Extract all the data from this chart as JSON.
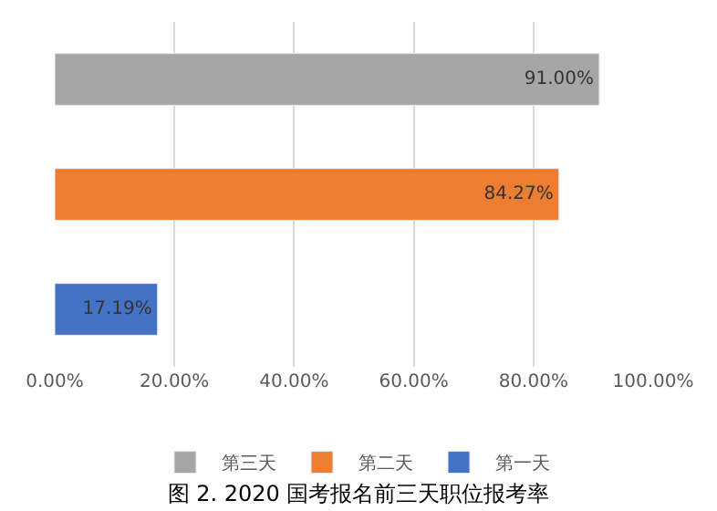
{
  "chart_data": {
    "type": "bar",
    "orientation": "horizontal",
    "title": "图 2. 2020 国考报名前三天职位报考率",
    "categories": [
      null,
      null,
      null
    ],
    "series": [
      {
        "name": "第三天",
        "color": "#a6a6a6",
        "values": [
          91.0,
          null,
          null
        ],
        "value_labels": [
          "91.00%",
          null,
          null
        ]
      },
      {
        "name": "第二天",
        "color": "#ed7d31",
        "values": [
          null,
          84.27,
          null
        ],
        "value_labels": [
          null,
          "84.27%",
          null
        ]
      },
      {
        "name": "第一天",
        "color": "#4472c4",
        "values": [
          null,
          null,
          17.19
        ],
        "value_labels": [
          null,
          null,
          "17.19%"
        ]
      }
    ],
    "xlim": [
      0,
      100
    ],
    "xticks": [
      {
        "value": 0,
        "label": "0.00%"
      },
      {
        "value": 20,
        "label": "20.00%"
      },
      {
        "value": 40,
        "label": "40.00%"
      },
      {
        "value": 60,
        "label": "60.00%"
      },
      {
        "value": 80,
        "label": "80.00%"
      },
      {
        "value": 100,
        "label": "100.00%"
      }
    ],
    "grid": "x",
    "legend": "bottom"
  }
}
